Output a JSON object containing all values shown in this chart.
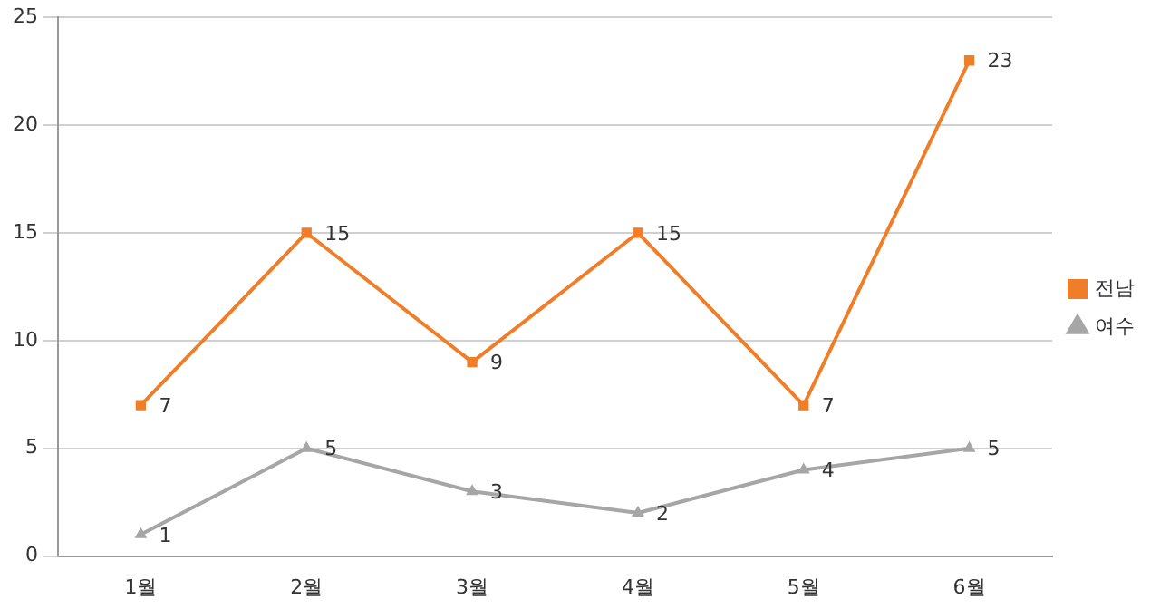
{
  "chart_data": {
    "type": "line",
    "categories": [
      "1월",
      "2월",
      "3월",
      "4월",
      "5월",
      "6월"
    ],
    "series": [
      {
        "name": "전남",
        "color": "#f07d28",
        "values": [
          7,
          15,
          9,
          15,
          7,
          23
        ],
        "marker": "square"
      },
      {
        "name": "여수",
        "color": "#a6a6a6",
        "values": [
          1,
          5,
          3,
          2,
          4,
          5
        ],
        "marker": "triangle"
      }
    ],
    "ylim": [
      0,
      25
    ],
    "yticks": [
      0,
      5,
      10,
      15,
      20,
      25
    ],
    "grid": "y",
    "legend": "right",
    "data_labels": true,
    "line_style": "solid"
  }
}
